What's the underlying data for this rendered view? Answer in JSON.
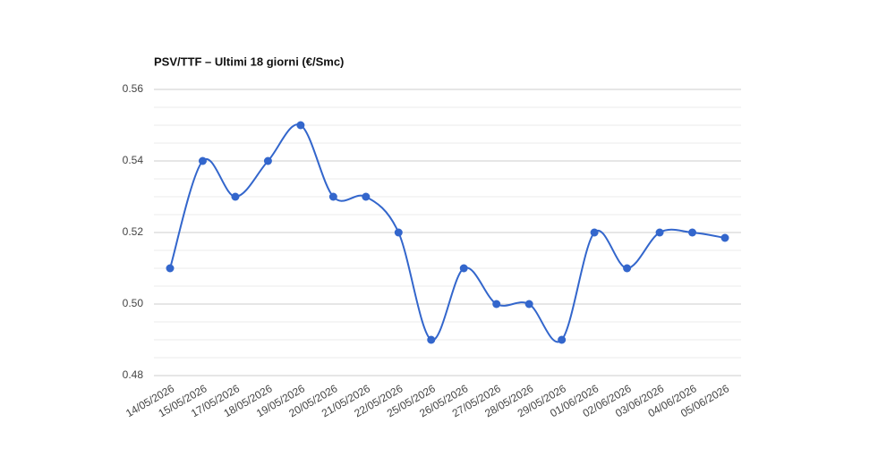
{
  "chart_data": {
    "type": "line",
    "title": "PSV/TTF – Ultimi 18 giorni (€/Smc)",
    "categories": [
      "14/05/2026",
      "15/05/2026",
      "17/05/2026",
      "18/05/2026",
      "19/05/2026",
      "20/05/2026",
      "21/05/2026",
      "22/05/2026",
      "25/05/2026",
      "26/05/2026",
      "27/05/2026",
      "28/05/2026",
      "29/05/2026",
      "01/06/2026",
      "02/06/2026",
      "03/06/2026",
      "04/06/2026",
      "05/06/2026"
    ],
    "values": [
      0.51,
      0.54,
      0.53,
      0.54,
      0.55,
      0.53,
      0.53,
      0.52,
      0.49,
      0.51,
      0.5,
      0.5,
      0.49,
      0.52,
      0.51,
      0.52,
      0.52,
      0.5185
    ],
    "color": "#3366cc",
    "ylim": [
      0.48,
      0.56
    ],
    "yticks": [
      {
        "value": 0.48,
        "label": "0.48"
      },
      {
        "value": 0.5,
        "label": "0.50"
      },
      {
        "value": 0.52,
        "label": "0.52"
      },
      {
        "value": 0.54,
        "label": "0.54"
      },
      {
        "value": 0.56,
        "label": "0.56"
      }
    ],
    "minor_yticks": [
      0.485,
      0.49,
      0.495,
      0.505,
      0.51,
      0.515,
      0.525,
      0.53,
      0.535,
      0.545,
      0.55,
      0.555
    ],
    "grid": true,
    "smooth": true
  }
}
